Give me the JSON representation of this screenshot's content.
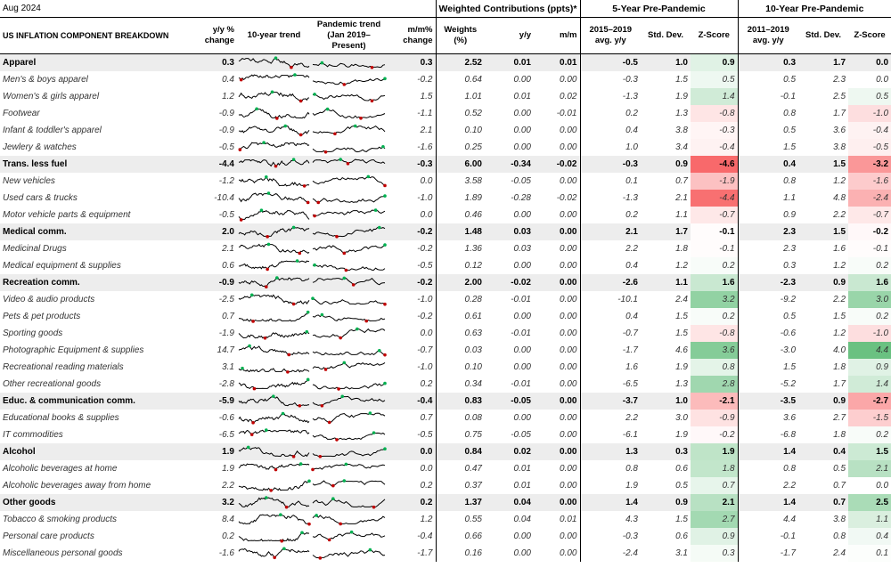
{
  "header": {
    "date": "Aug 2024",
    "weighted_group": "Weighted Contributions (ppts)*",
    "five_group": "5-Year Pre-Pandemic",
    "ten_group": "10-Year Pre-Pandemic",
    "col_name": "US INFLATION COMPONENT BREAKDOWN",
    "col_yy": "y/y % change",
    "col_trend10": "10-year trend",
    "col_pandemic": "Pandemic trend (Jan 2019–Present)",
    "col_mm": "m/m% change",
    "col_weights": "Weights (%)",
    "col_wyy": "y/y",
    "col_wmm": "m/m",
    "col_avg5": "2015–2019 avg. y/y",
    "col_sd5": "Std. Dev.",
    "col_z5": "Z-Score",
    "col_avg10": "2011–2019 avg. y/y",
    "col_sd10": "Std. Dev.",
    "col_z10": "Z-Score"
  },
  "colors": {
    "negative_z": "#f8696b",
    "positive_z": "#63be7b",
    "low_point": "#c00000",
    "high_point": "#00b050"
  },
  "rows": [
    {
      "name": "Apparel",
      "group": true,
      "yy": "0.3",
      "mm": "0.3",
      "w": "2.52",
      "wyy": "0.01",
      "wmm": "0.01",
      "a5": "-0.5",
      "s5": "1.0",
      "z5": "0.9",
      "a10": "0.3",
      "s10": "1.7",
      "z10": "0.0"
    },
    {
      "name": "Men's & boys apparel",
      "yy": "0.4",
      "mm": "-0.2",
      "w": "0.64",
      "wyy": "0.00",
      "wmm": "0.00",
      "a5": "-0.3",
      "s5": "1.5",
      "z5": "0.5",
      "a10": "0.5",
      "s10": "2.3",
      "z10": "0.0"
    },
    {
      "name": "Women's & girls apparel",
      "yy": "1.2",
      "mm": "1.5",
      "w": "1.01",
      "wyy": "0.01",
      "wmm": "0.02",
      "a5": "-1.3",
      "s5": "1.9",
      "z5": "1.4",
      "a10": "-0.1",
      "s10": "2.5",
      "z10": "0.5"
    },
    {
      "name": "Footwear",
      "yy": "-0.9",
      "mm": "-1.1",
      "w": "0.52",
      "wyy": "0.00",
      "wmm": "-0.01",
      "a5": "0.2",
      "s5": "1.3",
      "z5": "-0.8",
      "a10": "0.8",
      "s10": "1.7",
      "z10": "-1.0"
    },
    {
      "name": "Infant & toddler's apparel",
      "yy": "-0.9",
      "mm": "2.1",
      "w": "0.10",
      "wyy": "0.00",
      "wmm": "0.00",
      "a5": "0.4",
      "s5": "3.8",
      "z5": "-0.3",
      "a10": "0.5",
      "s10": "3.6",
      "z10": "-0.4"
    },
    {
      "name": "Jewlery & watches",
      "yy": "-0.5",
      "mm": "-1.6",
      "w": "0.25",
      "wyy": "0.00",
      "wmm": "0.00",
      "a5": "1.0",
      "s5": "3.4",
      "z5": "-0.4",
      "a10": "1.5",
      "s10": "3.8",
      "z10": "-0.5"
    },
    {
      "name": "Trans. less fuel",
      "group": true,
      "yy": "-4.4",
      "mm": "-0.3",
      "w": "6.00",
      "wyy": "-0.34",
      "wmm": "-0.02",
      "a5": "-0.3",
      "s5": "0.9",
      "z5": "-4.6",
      "a10": "0.4",
      "s10": "1.5",
      "z10": "-3.2"
    },
    {
      "name": "New vehicles",
      "yy": "-1.2",
      "mm": "0.0",
      "w": "3.58",
      "wyy": "-0.05",
      "wmm": "0.00",
      "a5": "0.1",
      "s5": "0.7",
      "z5": "-1.9",
      "a10": "0.8",
      "s10": "1.2",
      "z10": "-1.6"
    },
    {
      "name": "Used cars & trucks",
      "yy": "-10.4",
      "mm": "-1.0",
      "w": "1.89",
      "wyy": "-0.28",
      "wmm": "-0.02",
      "a5": "-1.3",
      "s5": "2.1",
      "z5": "-4.4",
      "a10": "1.1",
      "s10": "4.8",
      "z10": "-2.4"
    },
    {
      "name": "Motor vehicle parts & equipment",
      "yy": "-0.5",
      "mm": "0.0",
      "w": "0.46",
      "wyy": "0.00",
      "wmm": "0.00",
      "a5": "0.2",
      "s5": "1.1",
      "z5": "-0.7",
      "a10": "0.9",
      "s10": "2.2",
      "z10": "-0.7"
    },
    {
      "name": "Medical comm.",
      "group": true,
      "yy": "2.0",
      "mm": "-0.2",
      "w": "1.48",
      "wyy": "0.03",
      "wmm": "0.00",
      "a5": "2.1",
      "s5": "1.7",
      "z5": "-0.1",
      "a10": "2.3",
      "s10": "1.5",
      "z10": "-0.2"
    },
    {
      "name": "Medicinal Drugs",
      "yy": "2.1",
      "mm": "-0.2",
      "w": "1.36",
      "wyy": "0.03",
      "wmm": "0.00",
      "a5": "2.2",
      "s5": "1.8",
      "z5": "-0.1",
      "a10": "2.3",
      "s10": "1.6",
      "z10": "-0.1"
    },
    {
      "name": "Medical equipment & supplies",
      "yy": "0.6",
      "mm": "-0.5",
      "w": "0.12",
      "wyy": "0.00",
      "wmm": "0.00",
      "a5": "0.4",
      "s5": "1.2",
      "z5": "0.2",
      "a10": "0.3",
      "s10": "1.2",
      "z10": "0.2"
    },
    {
      "name": "Recreation comm.",
      "group": true,
      "yy": "-0.9",
      "mm": "-0.2",
      "w": "2.00",
      "wyy": "-0.02",
      "wmm": "0.00",
      "a5": "-2.6",
      "s5": "1.1",
      "z5": "1.6",
      "a10": "-2.3",
      "s10": "0.9",
      "z10": "1.6"
    },
    {
      "name": "Video & audio products",
      "yy": "-2.5",
      "mm": "-1.0",
      "w": "0.28",
      "wyy": "-0.01",
      "wmm": "0.00",
      "a5": "-10.1",
      "s5": "2.4",
      "z5": "3.2",
      "a10": "-9.2",
      "s10": "2.2",
      "z10": "3.0"
    },
    {
      "name": "Pets & pet products",
      "yy": "0.7",
      "mm": "-0.2",
      "w": "0.61",
      "wyy": "0.00",
      "wmm": "0.00",
      "a5": "0.4",
      "s5": "1.5",
      "z5": "0.2",
      "a10": "0.5",
      "s10": "1.5",
      "z10": "0.2"
    },
    {
      "name": "Sporting goods",
      "yy": "-1.9",
      "mm": "0.0",
      "w": "0.63",
      "wyy": "-0.01",
      "wmm": "0.00",
      "a5": "-0.7",
      "s5": "1.5",
      "z5": "-0.8",
      "a10": "-0.6",
      "s10": "1.2",
      "z10": "-1.0"
    },
    {
      "name": "Photographic Equipment & supplies",
      "yy": "14.7",
      "mm": "-0.7",
      "w": "0.03",
      "wyy": "0.00",
      "wmm": "0.00",
      "a5": "-1.7",
      "s5": "4.6",
      "z5": "3.6",
      "a10": "-3.0",
      "s10": "4.0",
      "z10": "4.4"
    },
    {
      "name": "Recreational reading materials",
      "yy": "3.1",
      "mm": "-1.0",
      "w": "0.10",
      "wyy": "0.00",
      "wmm": "0.00",
      "a5": "1.6",
      "s5": "1.9",
      "z5": "0.8",
      "a10": "1.5",
      "s10": "1.8",
      "z10": "0.9"
    },
    {
      "name": "Other recreational goods",
      "yy": "-2.8",
      "mm": "0.2",
      "w": "0.34",
      "wyy": "-0.01",
      "wmm": "0.00",
      "a5": "-6.5",
      "s5": "1.3",
      "z5": "2.8",
      "a10": "-5.2",
      "s10": "1.7",
      "z10": "1.4"
    },
    {
      "name": "Educ. & communication comm.",
      "group": true,
      "yy": "-5.9",
      "mm": "-0.4",
      "w": "0.83",
      "wyy": "-0.05",
      "wmm": "0.00",
      "a5": "-3.7",
      "s5": "1.0",
      "z5": "-2.1",
      "a10": "-3.5",
      "s10": "0.9",
      "z10": "-2.7"
    },
    {
      "name": "Educational books & supplies",
      "yy": "-0.6",
      "mm": "0.7",
      "w": "0.08",
      "wyy": "0.00",
      "wmm": "0.00",
      "a5": "2.2",
      "s5": "3.0",
      "z5": "-0.9",
      "a10": "3.6",
      "s10": "2.7",
      "z10": "-1.5"
    },
    {
      "name": "IT commodities",
      "yy": "-6.5",
      "mm": "-0.5",
      "w": "0.75",
      "wyy": "-0.05",
      "wmm": "0.00",
      "a5": "-6.1",
      "s5": "1.9",
      "z5": "-0.2",
      "a10": "-6.8",
      "s10": "1.8",
      "z10": "0.2"
    },
    {
      "name": "Alcohol",
      "group": true,
      "yy": "1.9",
      "mm": "0.0",
      "w": "0.84",
      "wyy": "0.02",
      "wmm": "0.00",
      "a5": "1.3",
      "s5": "0.3",
      "z5": "1.9",
      "a10": "1.4",
      "s10": "0.4",
      "z10": "1.5"
    },
    {
      "name": "Alcoholic beverages at home",
      "yy": "1.9",
      "mm": "0.0",
      "w": "0.47",
      "wyy": "0.01",
      "wmm": "0.00",
      "a5": "0.8",
      "s5": "0.6",
      "z5": "1.8",
      "a10": "0.8",
      "s10": "0.5",
      "z10": "2.1"
    },
    {
      "name": "Alcoholic beverages away from home",
      "yy": "2.2",
      "mm": "0.2",
      "w": "0.37",
      "wyy": "0.01",
      "wmm": "0.00",
      "a5": "1.9",
      "s5": "0.5",
      "z5": "0.7",
      "a10": "2.2",
      "s10": "0.7",
      "z10": "0.0"
    },
    {
      "name": "Other goods",
      "group": true,
      "yy": "3.2",
      "mm": "0.2",
      "w": "1.37",
      "wyy": "0.04",
      "wmm": "0.00",
      "a5": "1.4",
      "s5": "0.9",
      "z5": "2.1",
      "a10": "1.4",
      "s10": "0.7",
      "z10": "2.5"
    },
    {
      "name": "Tobacco & smoking products",
      "yy": "8.4",
      "mm": "1.2",
      "w": "0.55",
      "wyy": "0.04",
      "wmm": "0.01",
      "a5": "4.3",
      "s5": "1.5",
      "z5": "2.7",
      "a10": "4.4",
      "s10": "3.8",
      "z10": "1.1"
    },
    {
      "name": "Personal care products",
      "yy": "0.2",
      "mm": "-0.4",
      "w": "0.66",
      "wyy": "0.00",
      "wmm": "0.00",
      "a5": "-0.3",
      "s5": "0.6",
      "z5": "0.9",
      "a10": "-0.1",
      "s10": "0.8",
      "z10": "0.4"
    },
    {
      "name": "Miscellaneous personal goods",
      "yy": "-1.6",
      "mm": "-1.7",
      "w": "0.16",
      "wyy": "0.00",
      "wmm": "0.00",
      "a5": "-2.4",
      "s5": "3.1",
      "z5": "0.3",
      "a10": "-1.7",
      "s10": "2.4",
      "z10": "0.1"
    }
  ]
}
